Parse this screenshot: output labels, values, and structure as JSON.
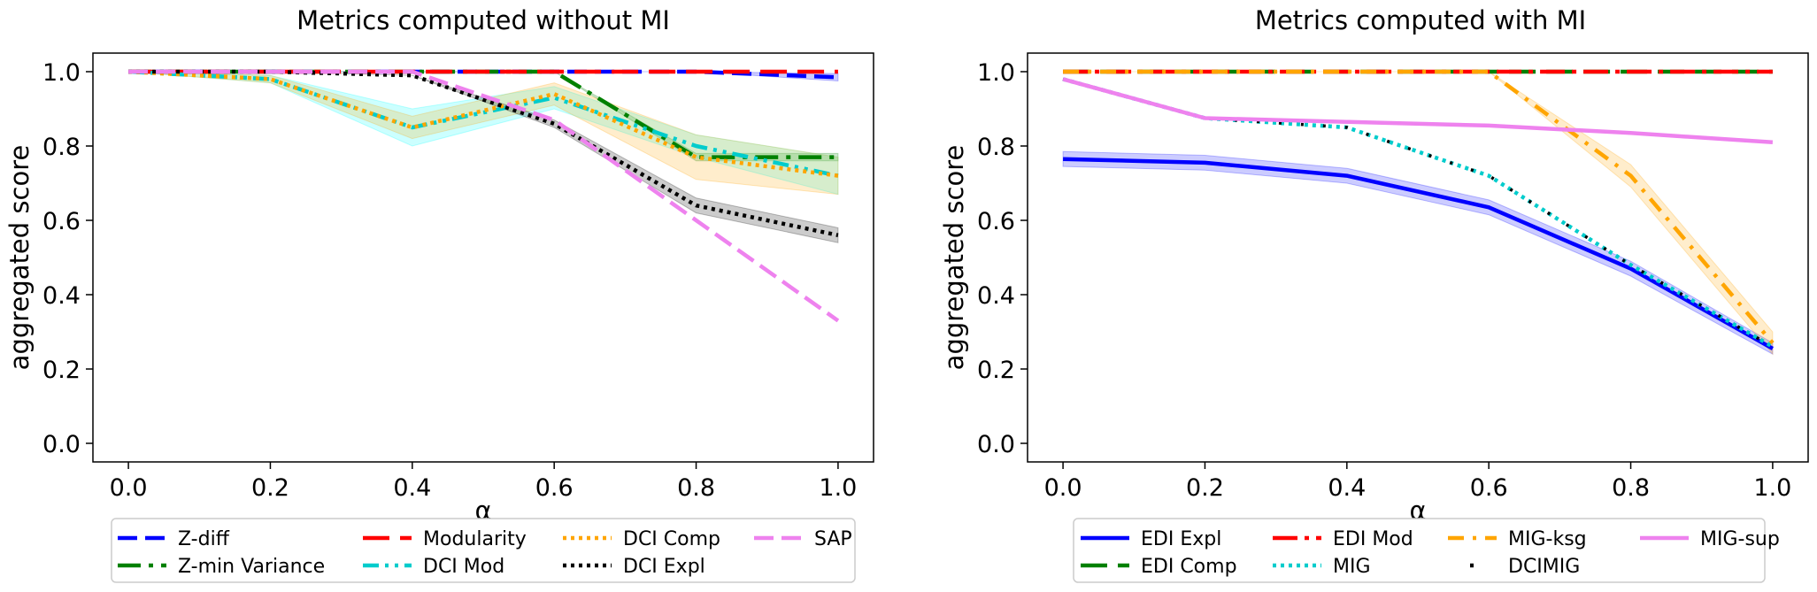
{
  "chart_data": [
    {
      "type": "line",
      "title": "Metrics computed without MI",
      "xlabel": "α",
      "ylabel": "aggregated score",
      "x": [
        0.0,
        0.2,
        0.4,
        0.6,
        0.8,
        1.0
      ],
      "xticks": [
        "0.0",
        "0.2",
        "0.4",
        "0.6",
        "0.8",
        "1.0"
      ],
      "yticks": [
        "0.0",
        "0.2",
        "0.4",
        "0.6",
        "0.8",
        "1.0"
      ],
      "xlim": [
        -0.05,
        1.05
      ],
      "ylim": [
        -0.05,
        1.05
      ],
      "grid": false,
      "legend_position": "below",
      "legend_columns": 4,
      "series": [
        {
          "name": "Z-diff",
          "color": "#0000ff",
          "style": "dashed",
          "values": [
            1.0,
            1.0,
            1.0,
            1.0,
            1.0,
            0.985
          ],
          "band": [
            0.0,
            0.0,
            0.0,
            0.0,
            0.0,
            0.01
          ]
        },
        {
          "name": "Z-min Variance",
          "color": "#008000",
          "style": "dashdot",
          "values": [
            1.0,
            1.0,
            1.0,
            1.0,
            0.77,
            0.77
          ],
          "band": [
            0.0,
            0.0,
            0.0,
            0.0,
            0.01,
            0.01
          ]
        },
        {
          "name": "Modularity",
          "color": "#ff0000",
          "style": "longdash",
          "values": [
            1.0,
            1.0,
            1.0,
            1.0,
            1.0,
            1.0
          ],
          "band": [
            0.0,
            0.0,
            0.0,
            0.0,
            0.0,
            0.0
          ]
        },
        {
          "name": "DCI Mod",
          "color": "#00cccc",
          "style": "dashdotdot",
          "values": [
            1.0,
            0.98,
            0.85,
            0.93,
            0.8,
            0.72
          ],
          "band": [
            0.0,
            0.01,
            0.05,
            0.03,
            0.03,
            0.05
          ],
          "band_color": "#00ffff"
        },
        {
          "name": "DCI Comp",
          "color": "#ffa500",
          "style": "dotted",
          "values": [
            1.0,
            0.98,
            0.85,
            0.94,
            0.77,
            0.72
          ],
          "band": [
            0.0,
            0.01,
            0.03,
            0.03,
            0.06,
            0.05
          ],
          "band_color": "#ffa500"
        },
        {
          "name": "DCI Expl",
          "color": "#000000",
          "style": "dotted",
          "values": [
            1.0,
            1.0,
            0.99,
            0.86,
            0.64,
            0.56
          ],
          "band": [
            0.0,
            0.0,
            0.0,
            0.01,
            0.02,
            0.02
          ],
          "band_color": "#000000"
        },
        {
          "name": "SAP",
          "color": "#ee82ee",
          "style": "dashed",
          "values": [
            1.0,
            1.0,
            1.0,
            0.87,
            0.6,
            0.33
          ],
          "band": [
            0.0,
            0.0,
            0.0,
            0.0,
            0.0,
            0.0
          ]
        }
      ]
    },
    {
      "type": "line",
      "title": "Metrics computed with MI",
      "xlabel": "α",
      "ylabel": "aggregated score",
      "x": [
        0.0,
        0.2,
        0.4,
        0.6,
        0.8,
        1.0
      ],
      "xticks": [
        "0.0",
        "0.2",
        "0.4",
        "0.6",
        "0.8",
        "1.0"
      ],
      "yticks": [
        "0.0",
        "0.2",
        "0.4",
        "0.6",
        "0.8",
        "1.0"
      ],
      "xlim": [
        -0.05,
        1.05
      ],
      "ylim": [
        -0.05,
        1.05
      ],
      "grid": false,
      "legend_position": "below",
      "legend_columns": 4,
      "series": [
        {
          "name": "EDI Expl",
          "color": "#0000ff",
          "style": "solid",
          "values": [
            0.765,
            0.755,
            0.72,
            0.635,
            0.47,
            0.255
          ],
          "band": [
            0.02,
            0.02,
            0.02,
            0.02,
            0.02,
            0.015
          ],
          "band_color": "#0000ff"
        },
        {
          "name": "EDI Comp",
          "color": "#008000",
          "style": "longdash",
          "values": [
            1.0,
            1.0,
            1.0,
            1.0,
            1.0,
            1.0
          ],
          "band": [
            0.0,
            0.0,
            0.0,
            0.0,
            0.0,
            0.0
          ]
        },
        {
          "name": "EDI Mod",
          "color": "#ff0000",
          "style": "longdashdot",
          "values": [
            1.0,
            1.0,
            1.0,
            1.0,
            1.0,
            1.0
          ],
          "band": [
            0.0,
            0.0,
            0.0,
            0.0,
            0.0,
            0.0
          ]
        },
        {
          "name": "MIG",
          "color": "#00cccc",
          "style": "dotted",
          "values": [
            0.98,
            0.875,
            0.85,
            0.72,
            0.48,
            0.26
          ],
          "band": [
            0.0,
            0.0,
            0.0,
            0.0,
            0.0,
            0.0
          ]
        },
        {
          "name": "MIG-ksg",
          "color": "#ffa500",
          "style": "ksgdash",
          "values": [
            1.0,
            1.0,
            1.0,
            1.0,
            0.72,
            0.27
          ],
          "band": [
            0.0,
            0.0,
            0.0,
            0.0,
            0.03,
            0.03
          ],
          "band_color": "#ffa500"
        },
        {
          "name": "DCIMIG",
          "color": "#000000",
          "style": "sparsedot",
          "values": [
            0.98,
            0.875,
            0.85,
            0.72,
            0.48,
            0.26
          ],
          "band": [
            0.0,
            0.0,
            0.0,
            0.0,
            0.0,
            0.0
          ]
        },
        {
          "name": "MIG-sup",
          "color": "#ee82ee",
          "style": "solid",
          "values": [
            0.98,
            0.875,
            0.865,
            0.855,
            0.835,
            0.81
          ],
          "band": [
            0.0,
            0.0,
            0.0,
            0.0,
            0.0,
            0.0
          ]
        }
      ]
    }
  ]
}
